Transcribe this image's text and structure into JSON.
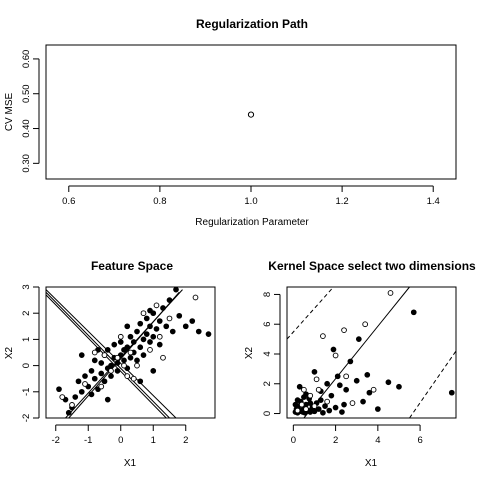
{
  "chart_data": [
    {
      "type": "scatter",
      "title": "Regularization Path",
      "xlabel": "Regularization Parameter",
      "ylabel": "CV MSE",
      "xlim": [
        0.55,
        1.45
      ],
      "ylim": [
        0.255,
        0.64
      ],
      "xticks": [
        0.6,
        0.8,
        1.0,
        1.2,
        1.4
      ],
      "xtick_labels": [
        "0.6",
        "0.8",
        "1.0",
        "1.2",
        "1.4"
      ],
      "yticks": [
        0.3,
        0.4,
        0.5,
        0.6
      ],
      "ytick_labels": [
        "0.30",
        "0.40",
        "0.50",
        "0.60"
      ],
      "points": [
        {
          "x": 1.0,
          "y": 0.44
        }
      ],
      "marker": "open-circle"
    },
    {
      "type": "scatter",
      "title": "Feature Space",
      "xlabel": "X1",
      "ylabel": "X2",
      "xlim": [
        -2.3,
        2.9
      ],
      "ylim": [
        -2.0,
        3.0
      ],
      "xticks": [
        -2,
        -1,
        0,
        1,
        2
      ],
      "xtick_labels": [
        "-2",
        "-1",
        "0",
        "1",
        "2"
      ],
      "yticks": [
        -2,
        -1,
        0,
        1,
        2,
        3
      ],
      "ytick_labels": [
        "-2",
        "-1",
        "0",
        "1",
        "2",
        "3"
      ],
      "series": [
        {
          "marker": "filled",
          "points": [
            [
              -1.9,
              -0.9
            ],
            [
              -1.7,
              -1.3
            ],
            [
              -1.6,
              -1.8
            ],
            [
              -1.5,
              -1.6
            ],
            [
              -1.4,
              -1.2
            ],
            [
              -1.3,
              -0.6
            ],
            [
              -1.2,
              -1.0
            ],
            [
              -1.1,
              -0.4
            ],
            [
              -1.0,
              -0.8
            ],
            [
              -0.9,
              -0.2
            ],
            [
              -0.9,
              -1.1
            ],
            [
              -0.8,
              0.2
            ],
            [
              -0.8,
              -0.5
            ],
            [
              -0.7,
              -0.9
            ],
            [
              -0.6,
              0.1
            ],
            [
              -0.6,
              -0.3
            ],
            [
              -0.5,
              -0.6
            ],
            [
              -0.5,
              0.4
            ],
            [
              -0.4,
              -0.1
            ],
            [
              -0.4,
              0.6
            ],
            [
              -0.3,
              0.0
            ],
            [
              -0.3,
              -0.4
            ],
            [
              -0.2,
              0.3
            ],
            [
              -0.2,
              0.8
            ],
            [
              -0.1,
              0.1
            ],
            [
              -0.1,
              -0.2
            ],
            [
              0.0,
              0.4
            ],
            [
              0.0,
              0.9
            ],
            [
              0.1,
              0.2
            ],
            [
              0.1,
              0.6
            ],
            [
              0.2,
              -0.1
            ],
            [
              0.2,
              0.7
            ],
            [
              0.3,
              0.3
            ],
            [
              0.3,
              1.1
            ],
            [
              0.4,
              0.5
            ],
            [
              0.4,
              0.9
            ],
            [
              0.5,
              0.2
            ],
            [
              0.5,
              1.3
            ],
            [
              0.6,
              0.7
            ],
            [
              0.6,
              1.6
            ],
            [
              0.7,
              0.4
            ],
            [
              0.7,
              1.0
            ],
            [
              0.8,
              1.2
            ],
            [
              0.8,
              1.8
            ],
            [
              0.9,
              0.9
            ],
            [
              0.9,
              1.5
            ],
            [
              1.0,
              1.1
            ],
            [
              1.0,
              2.0
            ],
            [
              1.1,
              1.4
            ],
            [
              1.2,
              1.7
            ],
            [
              1.2,
              0.8
            ],
            [
              1.3,
              2.2
            ],
            [
              1.4,
              1.5
            ],
            [
              1.5,
              2.5
            ],
            [
              1.6,
              1.3
            ],
            [
              1.7,
              2.9
            ],
            [
              1.8,
              1.9
            ],
            [
              2.0,
              1.5
            ],
            [
              2.2,
              1.7
            ],
            [
              2.4,
              1.3
            ],
            [
              2.7,
              1.2
            ],
            [
              -1.2,
              0.4
            ],
            [
              -0.7,
              0.6
            ],
            [
              0.6,
              -0.6
            ],
            [
              1.0,
              -0.2
            ],
            [
              -0.4,
              -1.3
            ],
            [
              0.2,
              1.5
            ],
            [
              0.9,
              2.1
            ]
          ]
        },
        {
          "marker": "open",
          "points": [
            [
              -1.8,
              -1.2
            ],
            [
              -1.5,
              -1.5
            ],
            [
              -1.1,
              -0.7
            ],
            [
              -0.8,
              0.5
            ],
            [
              -0.5,
              0.4
            ],
            [
              -0.3,
              -0.2
            ],
            [
              -0.1,
              0.3
            ],
            [
              0.0,
              1.1
            ],
            [
              0.2,
              -0.4
            ],
            [
              0.3,
              0.5
            ],
            [
              0.5,
              0.0
            ],
            [
              0.7,
              2.0
            ],
            [
              0.9,
              0.6
            ],
            [
              1.1,
              2.3
            ],
            [
              1.3,
              0.3
            ],
            [
              1.5,
              1.8
            ],
            [
              2.3,
              2.6
            ],
            [
              -0.6,
              -0.8
            ],
            [
              0.1,
              0.0
            ],
            [
              0.4,
              -0.5
            ],
            [
              1.2,
              1.1
            ]
          ]
        }
      ],
      "lines": [
        [
          [
            -2.3,
            2.9
          ],
          [
            1.7,
            -2.0
          ]
        ],
        [
          [
            -2.3,
            2.8
          ],
          [
            1.5,
            -2.0
          ]
        ],
        [
          [
            -2.3,
            2.7
          ],
          [
            1.4,
            -2.0
          ]
        ],
        [
          [
            -1.7,
            -2.0
          ],
          [
            1.9,
            2.9
          ]
        ],
        [
          [
            -1.6,
            -2.0
          ],
          [
            1.8,
            2.8
          ]
        ]
      ]
    },
    {
      "type": "scatter",
      "title": "Kernel Space select two dimensions",
      "xlabel": "X1",
      "ylabel": "X2",
      "xlim": [
        -0.3,
        7.7
      ],
      "ylim": [
        -0.3,
        8.5
      ],
      "xticks": [
        0,
        2,
        4,
        6
      ],
      "xtick_labels": [
        "0",
        "2",
        "4",
        "6"
      ],
      "yticks": [
        0,
        2,
        4,
        6,
        8
      ],
      "ytick_labels": [
        "0",
        "2",
        "4",
        "6",
        "8"
      ],
      "series": [
        {
          "marker": "filled",
          "points": [
            [
              0.1,
              0.1
            ],
            [
              0.15,
              0.3
            ],
            [
              0.2,
              0.05
            ],
            [
              0.25,
              0.5
            ],
            [
              0.3,
              0.15
            ],
            [
              0.35,
              0.8
            ],
            [
              0.4,
              0.2
            ],
            [
              0.45,
              0.1
            ],
            [
              0.5,
              0.35
            ],
            [
              0.55,
              0.05
            ],
            [
              0.6,
              0.6
            ],
            [
              0.7,
              0.2
            ],
            [
              0.75,
              1.0
            ],
            [
              0.8,
              0.1
            ],
            [
              0.9,
              0.4
            ],
            [
              1.0,
              0.15
            ],
            [
              1.1,
              0.7
            ],
            [
              1.2,
              0.3
            ],
            [
              1.3,
              1.5
            ],
            [
              1.4,
              0.05
            ],
            [
              1.5,
              0.5
            ],
            [
              1.6,
              2.0
            ],
            [
              1.7,
              0.2
            ],
            [
              1.8,
              1.2
            ],
            [
              2.0,
              0.4
            ],
            [
              2.1,
              2.5
            ],
            [
              2.3,
              0.1
            ],
            [
              2.5,
              1.6
            ],
            [
              2.7,
              3.5
            ],
            [
              3.0,
              2.2
            ],
            [
              3.3,
              0.8
            ],
            [
              3.6,
              1.4
            ],
            [
              4.0,
              0.3
            ],
            [
              4.5,
              2.1
            ],
            [
              5.0,
              1.8
            ],
            [
              5.7,
              6.8
            ],
            [
              7.5,
              1.4
            ],
            [
              0.2,
              0.9
            ],
            [
              0.3,
              1.8
            ],
            [
              0.6,
              1.3
            ],
            [
              1.0,
              2.8
            ],
            [
              1.9,
              4.3
            ],
            [
              2.4,
              0.6
            ],
            [
              3.1,
              5.0
            ],
            [
              0.1,
              0.6
            ],
            [
              0.5,
              1.1
            ],
            [
              0.8,
              0.7
            ],
            [
              1.3,
              0.9
            ],
            [
              2.2,
              1.9
            ],
            [
              3.5,
              2.6
            ]
          ]
        },
        {
          "marker": "open",
          "points": [
            [
              0.2,
              0.2
            ],
            [
              0.4,
              0.6
            ],
            [
              0.6,
              0.3
            ],
            [
              0.8,
              1.2
            ],
            [
              1.0,
              0.5
            ],
            [
              1.2,
              1.6
            ],
            [
              1.4,
              5.2
            ],
            [
              1.6,
              0.8
            ],
            [
              2.0,
              3.9
            ],
            [
              2.4,
              5.6
            ],
            [
              2.5,
              2.5
            ],
            [
              3.4,
              6.0
            ],
            [
              3.8,
              1.6
            ],
            [
              4.6,
              8.1
            ],
            [
              2.8,
              0.7
            ],
            [
              1.1,
              2.3
            ],
            [
              0.5,
              1.6
            ]
          ]
        }
      ],
      "lines": [
        [
          [
            0.5,
            -0.3
          ],
          [
            5.5,
            8.5
          ]
        ]
      ],
      "dashed_lines": [
        [
          [
            -0.3,
            5.0
          ],
          [
            1.9,
            8.5
          ]
        ],
        [
          [
            5.5,
            -0.3
          ],
          [
            7.7,
            4.2
          ]
        ]
      ]
    }
  ]
}
